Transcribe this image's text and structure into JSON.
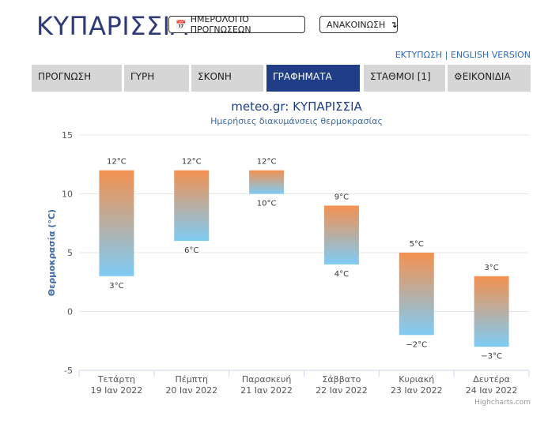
{
  "header": {
    "title": "ΚΥΠΑΡΙΣΣΙΑ",
    "calendar_button": "ΗΜΕΡΟΛΟΓΙΟ ΠΡΟΓΝΩΣΕΩΝ",
    "announcement_button": "ΑΝΑΚΟΙΝΩΣΗ",
    "print_link": "ΕΚΤΥΠΩΣΗ",
    "separator": "|",
    "english_link": "ENGLISH VERSION"
  },
  "nav": {
    "tabs": [
      {
        "label": "ΠΡΟΓΝΩΣΗ",
        "active": false
      },
      {
        "label": "ΓΥΡΗ",
        "active": false
      },
      {
        "label": "ΣΚΟΝΗ",
        "active": false
      },
      {
        "label": "ΓΡΑΦΗΜΑΤΑ",
        "active": true
      },
      {
        "label": "ΣΤΑΘΜΟΙ [1]",
        "active": false
      },
      {
        "label": "ΕΙΚΟΝΙΔΙΑ",
        "active": false,
        "icon": "gear-icon"
      }
    ]
  },
  "chart_data": {
    "type": "bar",
    "title": "meteo.gr: ΚΥΠΑΡΙΣΣΙΑ",
    "subtitle": "Ημερήσιες διακυμάνσεις θερμοκρασίας",
    "ylabel": "Θερμοκρασία (°C)",
    "ylim": [
      -5,
      15
    ],
    "yticks": [
      -5,
      0,
      5,
      10,
      15
    ],
    "grid": true,
    "categories": [
      [
        "Τετάρτη",
        "19 Ιαν 2022"
      ],
      [
        "Πέμπτη",
        "20 Ιαν 2022"
      ],
      [
        "Παρασκευή",
        "21 Ιαν 2022"
      ],
      [
        "Σάββατο",
        "22 Ιαν 2022"
      ],
      [
        "Κυριακή",
        "23 Ιαν 2022"
      ],
      [
        "Δευτέρα",
        "24 Ιαν 2022"
      ]
    ],
    "series": [
      {
        "low": [
          3,
          6,
          10,
          4,
          -2,
          -3
        ],
        "high": [
          12,
          12,
          12,
          9,
          5,
          3
        ]
      }
    ],
    "high_labels": [
      "12°C",
      "12°C",
      "12°C",
      "9°C",
      "5°C",
      "3°C"
    ],
    "low_labels": [
      "3°C",
      "6°C",
      "10°C",
      "4°C",
      "−2°C",
      "−3°C"
    ],
    "colors": {
      "top": "#f39150",
      "bottom": "#7ecbf5",
      "grid": "#e6e6e6",
      "title": "#1f3e87",
      "subtitle": "#3d6aa5"
    },
    "credits": "Highcharts.com"
  }
}
